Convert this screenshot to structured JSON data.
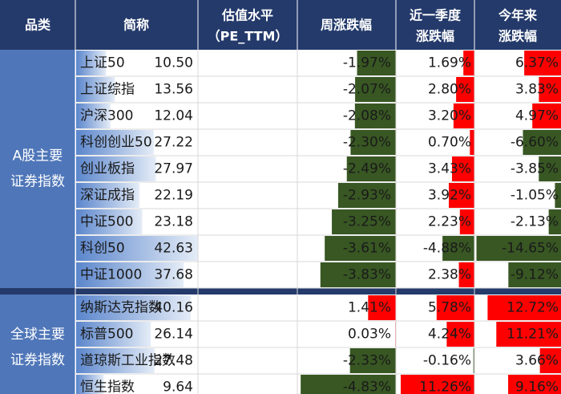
{
  "chart_data": {
    "type": "table",
    "headers": {
      "category": "品类",
      "name": "简称",
      "pe_line1": "估值水平",
      "pe_line2": "（PE_TTM）",
      "week": "周涨跌幅",
      "quarter_line1": "近一季度",
      "quarter_line2": "涨跌幅",
      "ytd_line1": "今年来",
      "ytd_line2": "涨跌幅"
    },
    "groups": [
      {
        "label_lines": [
          "A股主要",
          "证券指数"
        ],
        "rows": [
          {
            "name": "上证50",
            "pe": 10.5,
            "week": "-1.97%",
            "quarter": "1.69%",
            "ytd": "6.37%"
          },
          {
            "name": "上证综指",
            "pe": 13.56,
            "week": "-2.07%",
            "quarter": "2.80%",
            "ytd": "3.83%"
          },
          {
            "name": "沪深300",
            "pe": 12.04,
            "week": "-2.08%",
            "quarter": "3.20%",
            "ytd": "4.97%"
          },
          {
            "name": "科创创业50",
            "pe": 27.22,
            "week": "-2.30%",
            "quarter": "0.70%",
            "ytd": "-6.60%"
          },
          {
            "name": "创业板指",
            "pe": 27.97,
            "week": "-2.49%",
            "quarter": "3.43%",
            "ytd": "-3.85%"
          },
          {
            "name": "深证成指",
            "pe": 22.19,
            "week": "-2.93%",
            "quarter": "3.92%",
            "ytd": "-1.05%"
          },
          {
            "name": "中证500",
            "pe": 23.18,
            "week": "-3.25%",
            "quarter": "2.23%",
            "ytd": "-2.13%"
          },
          {
            "name": "科创50",
            "pe": 42.63,
            "week": "-3.61%",
            "quarter": "-4.88%",
            "ytd": "-14.65%"
          },
          {
            "name": "中证1000",
            "pe": 37.68,
            "week": "-3.83%",
            "quarter": "2.38%",
            "ytd": "-9.12%"
          }
        ]
      },
      {
        "label_lines": [
          "全球主要",
          "证券指数"
        ],
        "rows": [
          {
            "name": "纳斯达克指数",
            "pe": 40.16,
            "week": "1.41%",
            "quarter": "5.78%",
            "ytd": "12.72%"
          },
          {
            "name": "标普500",
            "pe": 26.14,
            "week": "0.03%",
            "quarter": "4.24%",
            "ytd": "11.21%"
          },
          {
            "name": "道琼斯工业指数",
            "pe": 27.48,
            "week": "-2.33%",
            "quarter": "-0.16%",
            "ytd": "3.66%"
          },
          {
            "name": "恒生指数",
            "pe": 9.64,
            "week": "-4.83%",
            "quarter": "11.26%",
            "ytd": "9.16%"
          }
        ]
      }
    ],
    "colors": {
      "header_bg": "#243a6b",
      "category_bg": "#4f76b8",
      "separator": "#243a6b",
      "positive_bar": "#ff0000",
      "negative_bar": "#385723",
      "pe_bar": "#5f8bd0",
      "grid": "#d9d9d9"
    }
  }
}
